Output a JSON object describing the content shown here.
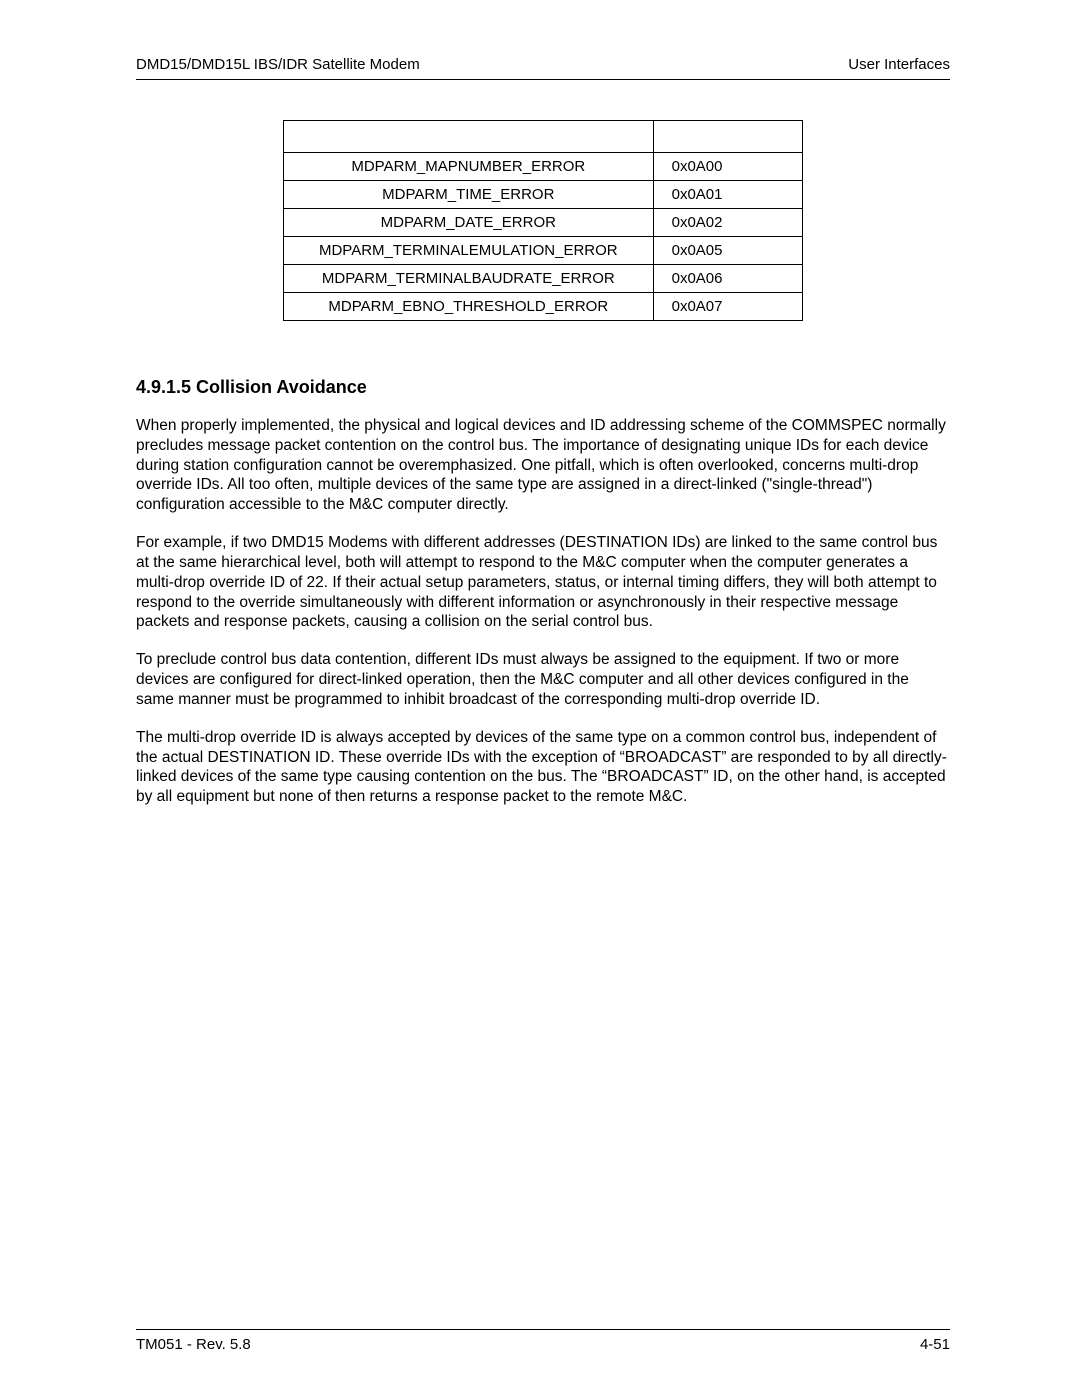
{
  "header": {
    "left": "DMD15/DMD15L IBS/IDR Satellite Modem",
    "right": "User Interfaces"
  },
  "error_table": {
    "rows": [
      {
        "name": "MDPARM_MAPNUMBER_ERROR",
        "code": "0x0A00"
      },
      {
        "name": "MDPARM_TIME_ERROR",
        "code": "0x0A01"
      },
      {
        "name": "MDPARM_DATE_ERROR",
        "code": "0x0A02"
      },
      {
        "name": "MDPARM_TERMINALEMULATION_ERROR",
        "code": "0x0A05"
      },
      {
        "name": "MDPARM_TERMINALBAUDRATE_ERROR",
        "code": "0x0A06"
      },
      {
        "name": "MDPARM_EBNO_THRESHOLD_ERROR",
        "code": "0x0A07"
      }
    ]
  },
  "section": {
    "heading": "4.9.1.5 Collision Avoidance",
    "paragraphs": [
      "When properly implemented, the physical and logical devices and ID addressing scheme of the COMMSPEC normally precludes message packet contention on the control bus. The importance of designating unique IDs for each device during station configuration cannot be overemphasized. One pitfall, which is often overlooked, concerns multi-drop override IDs. All too often, multiple devices of the same type are assigned in a direct-linked (\"single-thread\") configuration accessible to the M&C computer directly.",
      "For example, if two DMD15 Modems with different addresses (DESTINATION IDs) are linked to the same control bus at the same hierarchical level, both will attempt to respond to the M&C computer when the computer generates a multi-drop override ID of 22. If their actual setup parameters, status, or internal timing differs, they will both attempt to respond to the override simultaneously with different information or asynchronously in their respective message packets and response packets, causing a collision on the serial control bus.",
      "To preclude control bus data contention, different IDs must always be assigned to the equipment. If two or more devices are configured for direct-linked operation, then the M&C computer and all other devices configured in the same manner must be programmed to inhibit broadcast of the corresponding multi-drop override ID.",
      "The multi-drop override ID is always accepted by devices of the same type on a common control bus, independent of the actual DESTINATION ID. These override IDs with the exception of “BROADCAST” are responded to by all directly-linked devices of the same type causing contention on the bus. The “BROADCAST” ID, on the other hand, is accepted by all equipment but none of then returns a response packet to the remote M&C."
    ]
  },
  "footer": {
    "left": "TM051 - Rev. 5.8",
    "right": "4-51"
  }
}
